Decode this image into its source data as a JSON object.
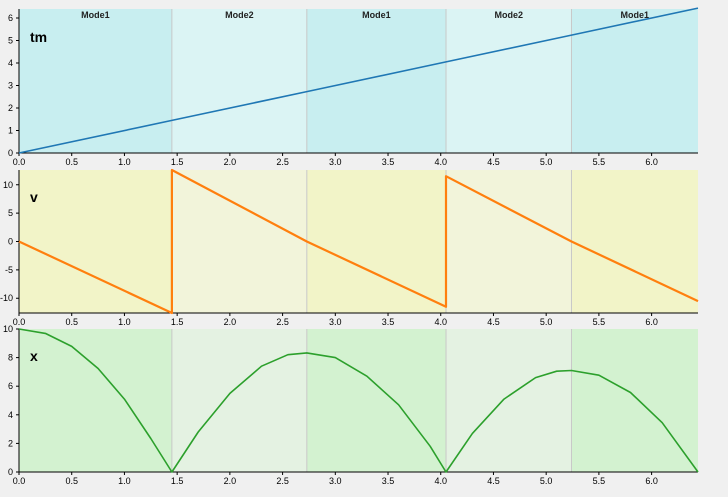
{
  "modes": [
    {
      "label": "Mode1",
      "start": 0.0,
      "end": 1.45
    },
    {
      "label": "Mode2",
      "start": 1.45,
      "end": 2.73
    },
    {
      "label": "Mode1",
      "start": 2.73,
      "end": 4.05
    },
    {
      "label": "Mode2",
      "start": 4.05,
      "end": 5.24
    },
    {
      "label": "Mode1",
      "start": 5.24,
      "end": 6.44
    }
  ],
  "chart_data": [
    {
      "type": "line",
      "title": "tm",
      "xlim": [
        0,
        6.44
      ],
      "ylim": [
        0,
        6.4
      ],
      "xticks": [
        0.0,
        0.5,
        1.0,
        1.5,
        2.0,
        2.5,
        3.0,
        3.5,
        4.0,
        4.5,
        5.0,
        5.5,
        6.0
      ],
      "yticks": [
        0,
        1,
        2,
        3,
        4,
        5,
        6
      ],
      "series": [
        {
          "color": "#1f77b4",
          "points": [
            [
              0,
              0
            ],
            [
              1.45,
              1.45
            ],
            [
              1.45,
              1.45
            ],
            [
              2.73,
              2.73
            ],
            [
              2.73,
              2.73
            ],
            [
              4.05,
              4.05
            ],
            [
              4.05,
              4.05
            ],
            [
              5.24,
              5.24
            ],
            [
              5.24,
              5.24
            ],
            [
              6.44,
              6.44
            ]
          ]
        }
      ],
      "background": {
        "mode1": "#c8eef0",
        "mode2": "#dbf4f4"
      }
    },
    {
      "type": "line",
      "title": "v",
      "xlim": [
        0,
        6.44
      ],
      "ylim": [
        -12.6,
        12.6
      ],
      "xticks": [
        0.0,
        0.5,
        1.0,
        1.5,
        2.0,
        2.5,
        3.0,
        3.5,
        4.0,
        4.5,
        5.0,
        5.5,
        6.0
      ],
      "yticks": [
        -10,
        -5,
        0,
        5,
        10
      ],
      "series": [
        {
          "color": "#ff7f0e",
          "points": [
            [
              0,
              0
            ],
            [
              1.45,
              -12.6
            ],
            [
              1.45,
              12.6
            ],
            [
              2.73,
              0
            ],
            [
              2.73,
              0
            ],
            [
              4.05,
              -11.5
            ],
            [
              4.05,
              11.5
            ],
            [
              5.24,
              0
            ],
            [
              5.24,
              0
            ],
            [
              6.44,
              -10.5
            ]
          ]
        }
      ],
      "background": {
        "mode1": "#f2f4c8",
        "mode2": "#f2f4da"
      }
    },
    {
      "type": "line",
      "title": "x",
      "xlim": [
        0,
        6.44
      ],
      "ylim": [
        0,
        10
      ],
      "xticks": [
        0.0,
        0.5,
        1.0,
        1.5,
        2.0,
        2.5,
        3.0,
        3.5,
        4.0,
        4.5,
        5.0,
        5.5,
        6.0
      ],
      "yticks": [
        0,
        2,
        4,
        6,
        8,
        10
      ],
      "series": [
        {
          "color": "#2ca02c",
          "points": [
            [
              0,
              10
            ],
            [
              0.25,
              9.69
            ],
            [
              0.5,
              8.78
            ],
            [
              0.75,
              7.24
            ],
            [
              1.0,
              5.1
            ],
            [
              1.25,
              2.34
            ],
            [
              1.45,
              0
            ],
            [
              1.7,
              2.8
            ],
            [
              2.0,
              5.5
            ],
            [
              2.3,
              7.4
            ],
            [
              2.55,
              8.2
            ],
            [
              2.73,
              8.33
            ],
            [
              3.0,
              8.0
            ],
            [
              3.3,
              6.7
            ],
            [
              3.6,
              4.7
            ],
            [
              3.9,
              1.8
            ],
            [
              4.05,
              0
            ],
            [
              4.3,
              2.7
            ],
            [
              4.6,
              5.1
            ],
            [
              4.9,
              6.6
            ],
            [
              5.1,
              7.05
            ],
            [
              5.24,
              7.1
            ],
            [
              5.5,
              6.77
            ],
            [
              5.8,
              5.56
            ],
            [
              6.1,
              3.45
            ],
            [
              6.44,
              0
            ]
          ]
        }
      ],
      "background": {
        "mode1": "#d3f2d0",
        "mode2": "#e4f2e2"
      }
    }
  ]
}
